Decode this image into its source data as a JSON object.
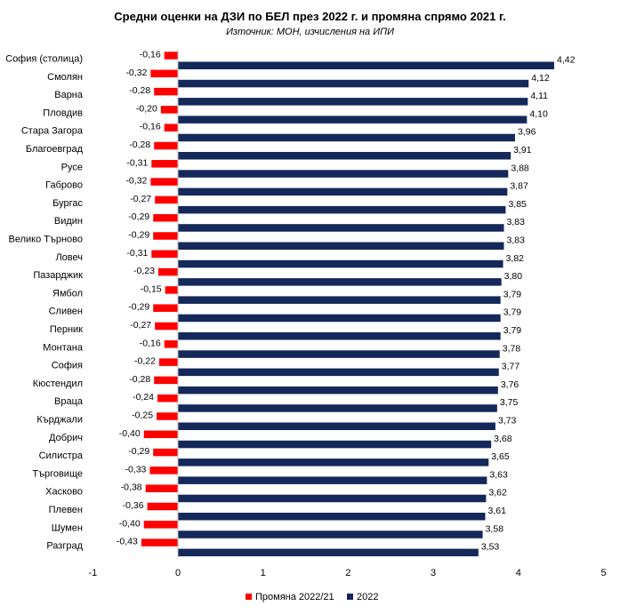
{
  "chart_data": {
    "type": "bar",
    "orientation": "horizontal",
    "title": "Средни оценки на ДЗИ по БЕЛ през 2022 г. и промяна спрямо 2021 г.",
    "subtitle": "Източник: МОН, изчисления на ИПИ",
    "categories": [
      "София (столица)",
      "Смолян",
      "Варна",
      "Пловдив",
      "Стара Загора",
      "Благоевград",
      "Русе",
      "Габрово",
      "Бургас",
      "Видин",
      "Велико Търново",
      "Ловеч",
      "Пазарджик",
      "Ямбол",
      "Сливен",
      "Перник",
      "Монтана",
      "София",
      "Кюстендил",
      "Враца",
      "Кърджали",
      "Добрич",
      "Силистра",
      "Търговище",
      "Хасково",
      "Плевен",
      "Шумен",
      "Разград"
    ],
    "series": [
      {
        "name": "Промяна 2022/21",
        "color": "#ff0000",
        "values": [
          -0.16,
          -0.32,
          -0.28,
          -0.2,
          -0.16,
          -0.28,
          -0.31,
          -0.32,
          -0.27,
          -0.29,
          -0.29,
          -0.31,
          -0.23,
          -0.15,
          -0.29,
          -0.27,
          -0.16,
          -0.22,
          -0.28,
          -0.24,
          -0.25,
          -0.4,
          -0.29,
          -0.33,
          -0.38,
          -0.36,
          -0.4,
          -0.43
        ],
        "labels": [
          "-0,16",
          "-0,32",
          "-0,28",
          "-0,20",
          "-0,16",
          "-0,28",
          "-0,31",
          "-0,32",
          "-0,27",
          "-0,29",
          "-0,29",
          "-0,31",
          "-0,23",
          "-0,15",
          "-0,29",
          "-0,27",
          "-0,16",
          "-0,22",
          "-0,28",
          "-0,24",
          "-0,25",
          "-0,40",
          "-0,29",
          "-0,33",
          "-0,38",
          "-0,36",
          "-0,40",
          "-0,43"
        ]
      },
      {
        "name": "2022",
        "color": "#14285a",
        "values": [
          4.42,
          4.12,
          4.11,
          4.1,
          3.96,
          3.91,
          3.88,
          3.87,
          3.85,
          3.83,
          3.83,
          3.82,
          3.8,
          3.79,
          3.79,
          3.79,
          3.78,
          3.77,
          3.76,
          3.75,
          3.73,
          3.68,
          3.65,
          3.63,
          3.62,
          3.61,
          3.58,
          3.53
        ],
        "labels": [
          "4,42",
          "4,12",
          "4,11",
          "4,10",
          "3,96",
          "3,91",
          "3,88",
          "3,87",
          "3,85",
          "3,83",
          "3,83",
          "3,82",
          "3,80",
          "3,79",
          "3,79",
          "3,79",
          "3,78",
          "3,77",
          "3,76",
          "3,75",
          "3,73",
          "3,68",
          "3,65",
          "3,63",
          "3,62",
          "3,61",
          "3,58",
          "3,53"
        ]
      }
    ],
    "xlim": [
      -1,
      5
    ],
    "xticks": [
      "-1",
      "0",
      "1",
      "2",
      "3",
      "4",
      "5"
    ],
    "grid": false,
    "legend_position": "bottom"
  }
}
